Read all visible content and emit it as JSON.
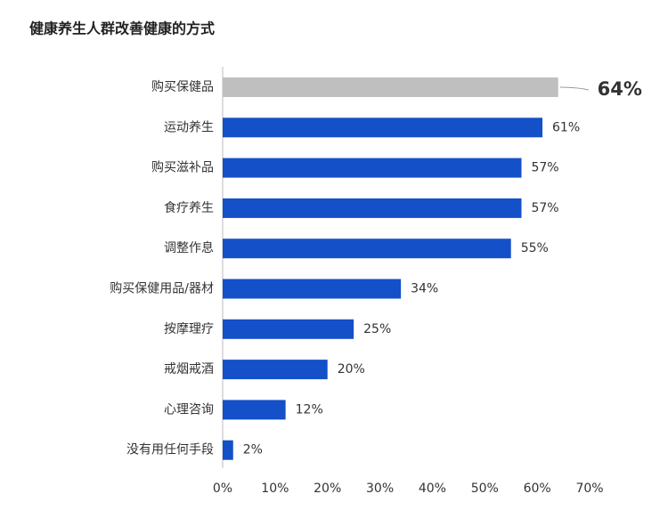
{
  "chart_data": {
    "type": "barh",
    "title": "健康养生人群改善健康的方式",
    "categories": [
      "购买保健品",
      "运动养生",
      "购买滋补品",
      "食疗养生",
      "调整作息",
      "购买保健用品/器材",
      "按摩理疗",
      "戒烟戒酒",
      "心理咨询",
      "没有用任何手段"
    ],
    "values": [
      64,
      61,
      57,
      57,
      55,
      34,
      25,
      20,
      12,
      2
    ],
    "value_labels": [
      "64%",
      "61%",
      "57%",
      "57%",
      "55%",
      "34%",
      "25%",
      "20%",
      "12%",
      "2%"
    ],
    "colors": [
      "#bfbfbf",
      "#1450c8",
      "#1450c8",
      "#1450c8",
      "#1450c8",
      "#1450c8",
      "#1450c8",
      "#1450c8",
      "#1450c8",
      "#1450c8"
    ],
    "xlim": [
      0,
      70
    ],
    "xticks": [
      {
        "value": 0,
        "label": "0%"
      },
      {
        "value": 10,
        "label": "10%"
      },
      {
        "value": 20,
        "label": "20%"
      },
      {
        "value": 30,
        "label": "30%"
      },
      {
        "value": 40,
        "label": "40%"
      },
      {
        "value": 50,
        "label": "50%"
      },
      {
        "value": 60,
        "label": "60%"
      },
      {
        "value": 70,
        "label": "70%"
      }
    ],
    "grid": false
  }
}
